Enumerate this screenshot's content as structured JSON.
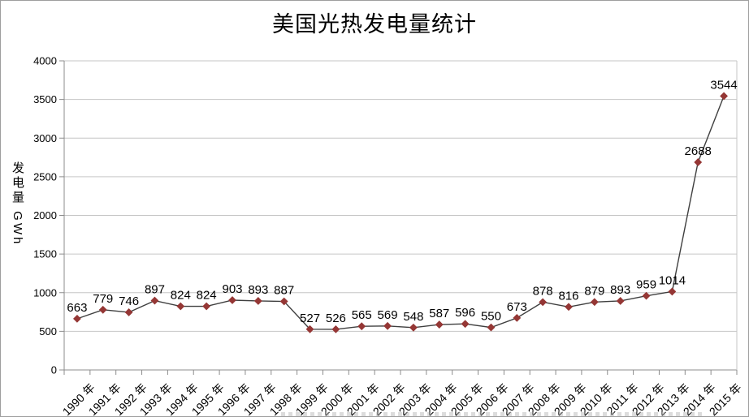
{
  "chart_data": {
    "type": "line",
    "title": "美国光热发电量统计",
    "ylabel": "发电量 GWh",
    "xlabel": "",
    "categories": [
      "1990 年",
      "1991 年",
      "1992 年",
      "1993 年",
      "1994 年",
      "1995 年",
      "1996 年",
      "1997 年",
      "1998 年",
      "1999 年",
      "2000 年",
      "2001 年",
      "2002 年",
      "2003 年",
      "2004 年",
      "2005 年",
      "2006 年",
      "2007 年",
      "2008 年",
      "2009 年",
      "2010 年",
      "2011 年",
      "2012 年",
      "2013 年",
      "2014 年",
      "2015 年"
    ],
    "values": [
      663,
      779,
      746,
      897,
      824,
      824,
      903,
      893,
      887,
      527,
      526,
      565,
      569,
      548,
      587,
      596,
      550,
      673,
      878,
      816,
      879,
      893,
      959,
      1014,
      2688,
      3544
    ],
    "ylim": [
      0,
      4000
    ],
    "yticks": [
      0,
      500,
      1000,
      1500,
      2000,
      2500,
      3000,
      3500,
      4000
    ],
    "grid": "horizontal",
    "legend": "none",
    "marker_shape": "diamond",
    "colors": {
      "line": "#3f3f3f",
      "marker": "#953735",
      "gridline": "#c6c6c6",
      "axis": "#8c8c8c",
      "label_text": "#000000",
      "background": "#ffffff"
    }
  }
}
